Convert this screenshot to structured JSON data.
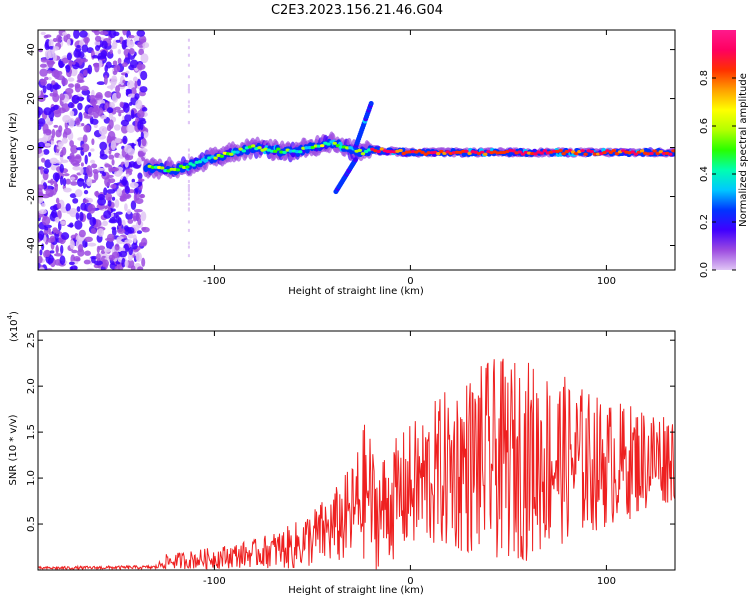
{
  "figure": {
    "title": "C2E3.2023.156.21.46.G04"
  },
  "chart_data": [
    {
      "type": "heatmap",
      "title": "C2E3.2023.156.21.46.G04",
      "xlabel": "Height of straight line (km)",
      "ylabel": "Frequency (Hz)",
      "xlim": [
        -190,
        135
      ],
      "ylim": [
        -50,
        48
      ],
      "xticks": [
        "-100",
        "0",
        "100"
      ],
      "xtick_values": [
        -100,
        0,
        100
      ],
      "yticks": [
        "-40",
        "-20",
        "0",
        "20",
        "40"
      ],
      "ytick_values": [
        -40,
        -20,
        0,
        20,
        40
      ],
      "colorbar": {
        "label": "Normalized spectral amplitude",
        "range": [
          0,
          1
        ],
        "ticks": [
          "0.0",
          "0.2",
          "0.4",
          "0.6",
          "0.8"
        ],
        "tick_values": [
          0.0,
          0.2,
          0.4,
          0.6,
          0.8
        ],
        "colors": [
          "#e0c6f5",
          "#9c4be0",
          "#3f00ff",
          "#0035ff",
          "#00c8ff",
          "#00ffb0",
          "#28ff00",
          "#b4ff00",
          "#ffff00",
          "#ffa000",
          "#ff3000",
          "#ff0060",
          "#ff1a8c"
        ]
      },
      "features": {
        "main_trace": {
          "description_points_x": [
            -135,
            -120,
            -100,
            -80,
            -60,
            -40,
            -25,
            -20,
            0,
            20,
            60,
            100,
            135
          ],
          "description_points_y": [
            -8,
            -9,
            -4,
            0,
            -2,
            2,
            -2,
            -1,
            -2,
            -2,
            -2,
            -2,
            -2
          ]
        },
        "noise_region_x": [
          -190,
          -135
        ],
        "streak_up": {
          "x": [
            -28,
            -20
          ],
          "y": [
            0,
            18
          ]
        },
        "streak_down": {
          "x": [
            -38,
            -28
          ],
          "y": [
            -18,
            -5
          ]
        }
      }
    },
    {
      "type": "line",
      "xlabel": "Height of straight line (km)",
      "ylabel": "SNR (10 * v/v)",
      "multiplier": "(x10",
      "multiplier_exp": "4",
      "multiplier_close": ")",
      "xlim": [
        -190,
        135
      ],
      "ylim": [
        0,
        26000
      ],
      "xticks": [
        "-100",
        "0",
        "100"
      ],
      "xtick_values": [
        -100,
        0,
        100
      ],
      "yticks": [
        "0.5",
        "1.0",
        "1.5",
        "2.0",
        "2.5"
      ],
      "ytick_values": [
        5000,
        10000,
        15000,
        20000,
        25000
      ],
      "color": "#ee2020",
      "envelope_x": [
        -190,
        -130,
        -125,
        -100,
        -80,
        -60,
        -40,
        -30,
        -22,
        -18,
        0,
        20,
        40,
        60,
        80,
        100,
        135
      ],
      "envelope_mean": [
        200,
        300,
        900,
        1300,
        1800,
        2500,
        4500,
        6000,
        9000,
        6000,
        9000,
        11000,
        12000,
        12000,
        12000,
        11500,
        12500
      ],
      "envelope_amp": [
        150,
        200,
        800,
        1200,
        1500,
        2500,
        4000,
        5500,
        8000,
        6000,
        7000,
        9000,
        11000,
        11000,
        9000,
        7000,
        5000
      ]
    }
  ]
}
